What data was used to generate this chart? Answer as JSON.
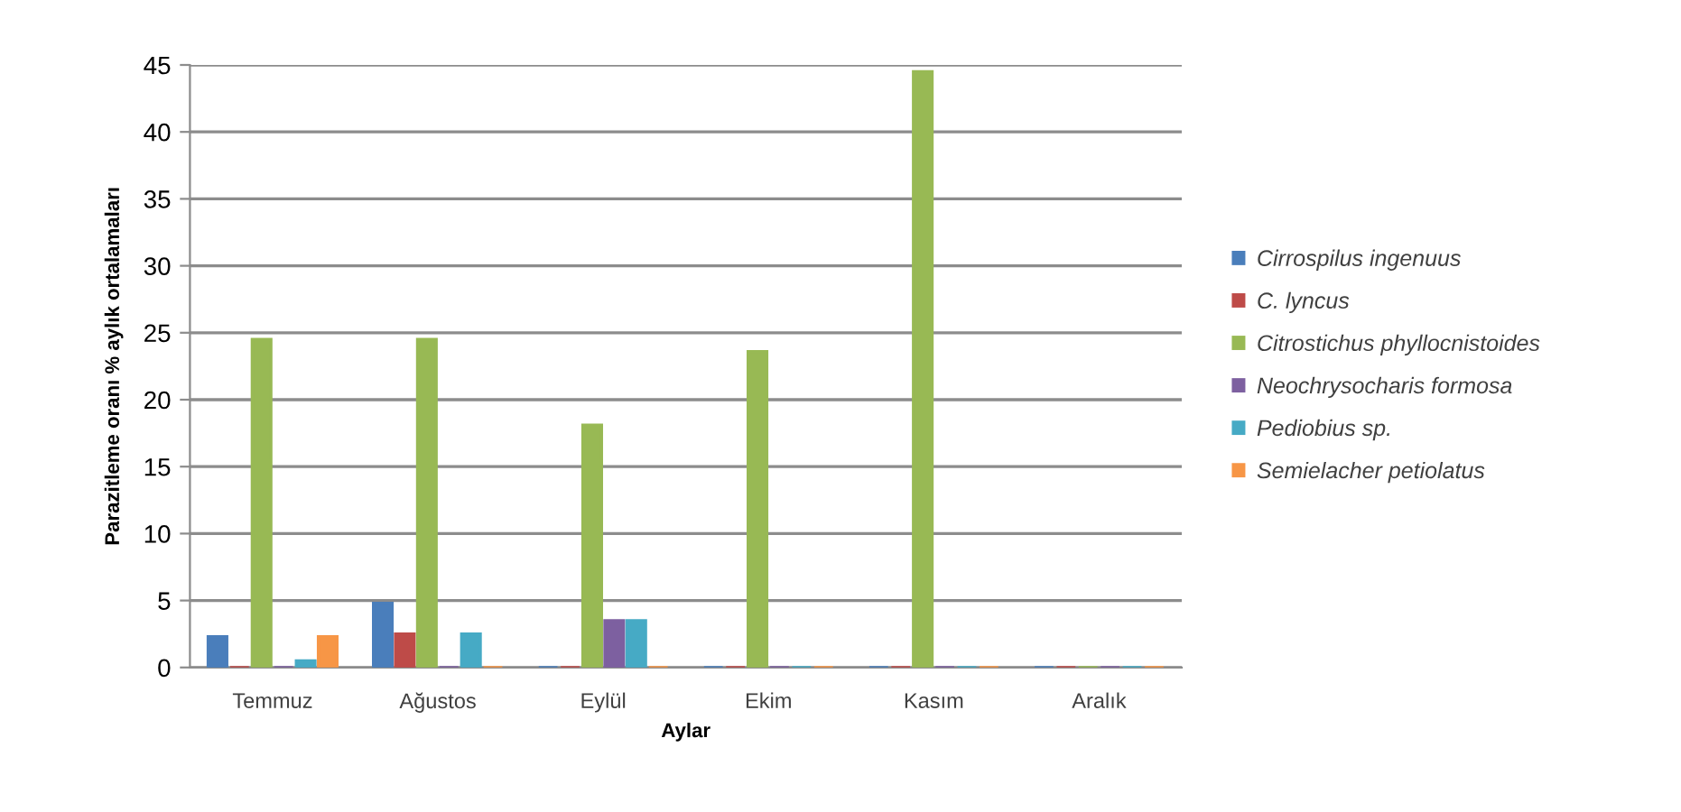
{
  "chart_data": {
    "type": "bar",
    "xlabel": "Aylar",
    "ylabel": "Parazitleme oranı % aylık ortalamaları",
    "categories": [
      "Temmuz",
      "Ağustos",
      "Eylül",
      "Ekim",
      "Kasım",
      "Aralık"
    ],
    "series": [
      {
        "name": "Cirrospilus ingenuus",
        "color": "#4a7ebb",
        "values": [
          2.3,
          4.8,
          0,
          0,
          0,
          0
        ]
      },
      {
        "name": "C. lyncus",
        "color": "#be4b48",
        "values": [
          0,
          2.5,
          0,
          0,
          0,
          0
        ]
      },
      {
        "name": "Citrostichus phyllocnistoides",
        "color": "#98b954",
        "values": [
          24.5,
          24.5,
          18.1,
          23.6,
          44.5,
          0
        ]
      },
      {
        "name": "Neochrysocharis formosa",
        "color": "#7d60a0",
        "values": [
          0,
          0,
          3.5,
          0,
          0,
          0
        ]
      },
      {
        "name": "Pediobius sp.",
        "color": "#46aac5",
        "values": [
          0.5,
          2.5,
          3.5,
          0,
          0,
          0
        ]
      },
      {
        "name": "Semielacher petiolatus",
        "color": "#f79646",
        "values": [
          2.3,
          0,
          0,
          0,
          0,
          0
        ]
      }
    ],
    "ylim": [
      0,
      45
    ],
    "yticks": [
      0,
      5,
      10,
      15,
      20,
      25,
      30,
      35,
      40,
      45
    ],
    "grid": "y",
    "legend": "right"
  }
}
